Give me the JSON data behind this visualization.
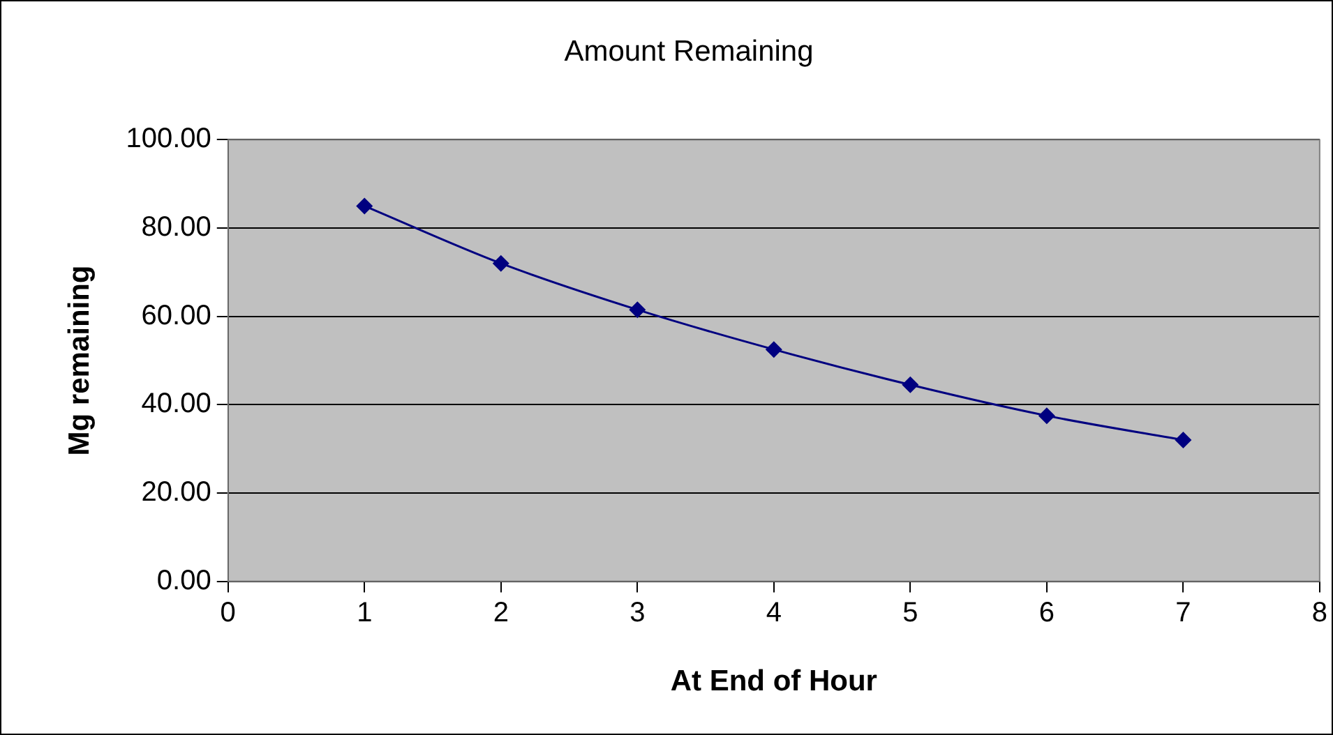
{
  "chart_data": {
    "type": "line",
    "title": "Amount Remaining",
    "xlabel": "At End of Hour",
    "ylabel": "Mg remaining",
    "x": [
      1,
      2,
      3,
      4,
      5,
      6,
      7
    ],
    "series": [
      {
        "color": "#000080",
        "values": [
          85,
          72,
          61.5,
          52.5,
          44.5,
          37.5,
          32
        ]
      }
    ],
    "xlim": [
      0,
      8
    ],
    "xticks": [
      0,
      1,
      2,
      3,
      4,
      5,
      6,
      7,
      8
    ],
    "ylim": [
      0,
      100
    ],
    "yticks": [
      {
        "value": 0,
        "label": "0.00"
      },
      {
        "value": 20,
        "label": "20.00"
      },
      {
        "value": 40,
        "label": "40.00"
      },
      {
        "value": 60,
        "label": "60.00"
      },
      {
        "value": 80,
        "label": "80.00"
      },
      {
        "value": 100,
        "label": "100.00"
      }
    ],
    "grid": "y",
    "legend": false,
    "marker": "diamond",
    "line_style": "solid"
  }
}
